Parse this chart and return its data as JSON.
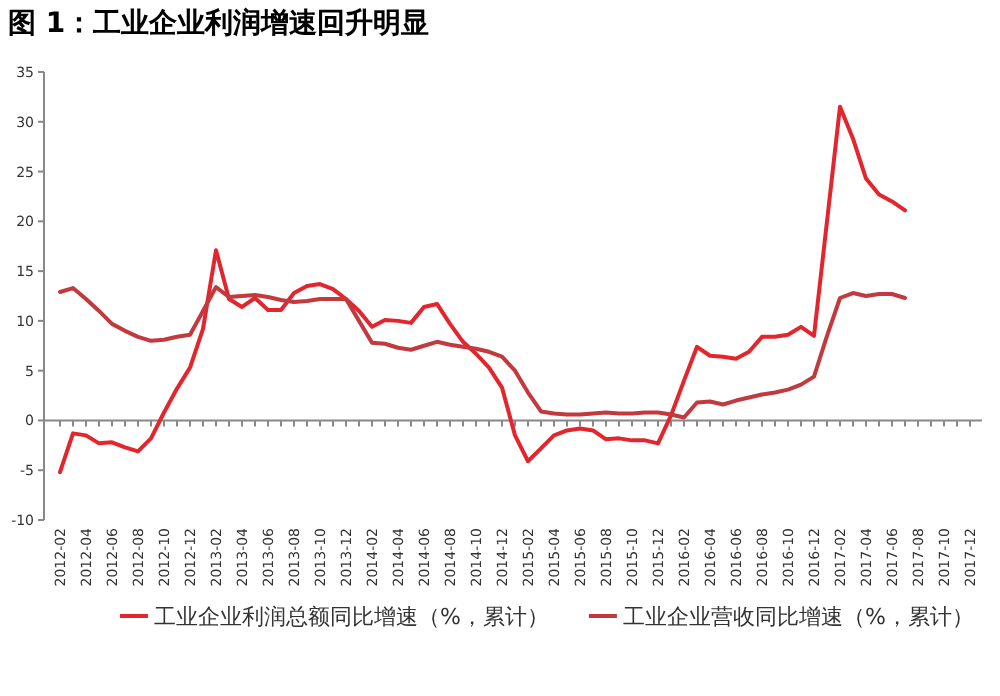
{
  "chart_data": {
    "type": "line",
    "title": "图 1：工业企业利润增速回升明显",
    "categories": [
      "2012-02",
      null,
      "2012-04",
      null,
      "2012-06",
      null,
      "2012-08",
      null,
      "2012-10",
      null,
      "2012-12",
      null,
      "2013-02",
      null,
      "2013-04",
      null,
      "2013-06",
      null,
      "2013-08",
      null,
      "2013-10",
      null,
      "2013-12",
      null,
      "2014-02",
      null,
      "2014-04",
      null,
      "2014-06",
      null,
      "2014-08",
      null,
      "2014-10",
      null,
      "2014-12",
      null,
      "2015-02",
      null,
      "2015-04",
      null,
      "2015-06",
      null,
      "2015-08",
      null,
      "2015-10",
      null,
      "2015-12",
      null,
      "2016-02",
      null,
      "2016-04",
      null,
      "2016-06",
      null,
      "2016-08",
      null,
      "2016-10",
      null,
      "2016-12",
      null,
      "2017-02",
      null,
      "2017-04",
      null,
      "2017-06",
      null,
      "2017-08",
      null,
      "2017-10",
      null,
      "2017-12"
    ],
    "series": [
      {
        "name": "工业企业利润总额同比增速（%，累计）",
        "color": "#e3262d",
        "values": [
          -5.2,
          -1.3,
          -1.5,
          -2.3,
          -2.2,
          -2.7,
          -3.1,
          -1.8,
          0.8,
          3.2,
          5.3,
          9.2,
          17.1,
          12.2,
          11.4,
          12.3,
          11.1,
          11.1,
          12.8,
          13.5,
          13.7,
          13.2,
          12.2,
          11.0,
          9.4,
          10.1,
          10.0,
          9.8,
          11.4,
          11.7,
          9.7,
          7.9,
          6.7,
          5.3,
          3.3,
          -1.5,
          -4.1,
          -2.8,
          -1.5,
          -1.0,
          -0.8,
          -1.0,
          -1.9,
          -1.8,
          -2.0,
          -2.0,
          -2.3,
          0.5,
          4.0,
          7.4,
          6.5,
          6.4,
          6.2,
          6.9,
          8.4,
          8.4,
          8.6,
          9.4,
          8.5,
          20.0,
          31.5,
          28.3,
          24.3,
          22.7,
          22.0,
          21.1,
          null,
          null,
          null,
          null,
          null
        ]
      },
      {
        "name": "工业企业营收同比增速（%，累计）",
        "color": "#c23a3e",
        "values": [
          12.9,
          13.3,
          12.2,
          11.0,
          9.7,
          9.0,
          8.4,
          8.0,
          8.1,
          8.4,
          8.6,
          11.0,
          13.4,
          12.4,
          12.5,
          12.6,
          12.4,
          12.1,
          11.9,
          12.0,
          12.2,
          12.2,
          12.2,
          10.0,
          7.8,
          7.7,
          7.3,
          7.1,
          7.5,
          7.9,
          7.6,
          7.4,
          7.2,
          6.9,
          6.4,
          5.0,
          2.8,
          0.9,
          0.7,
          0.6,
          0.6,
          0.7,
          0.8,
          0.7,
          0.7,
          0.8,
          0.8,
          0.6,
          0.3,
          1.8,
          1.9,
          1.6,
          2.0,
          2.3,
          2.6,
          2.8,
          3.1,
          3.6,
          4.4,
          8.5,
          12.3,
          12.8,
          12.5,
          12.7,
          12.7,
          12.3,
          null,
          null,
          null,
          null,
          null
        ]
      }
    ],
    "ylim": [
      -10,
      35
    ],
    "yticks": [
      -10,
      -5,
      0,
      5,
      10,
      15,
      20,
      25,
      30,
      35
    ],
    "legend": "bottom",
    "marker": "none",
    "line_style": "solid"
  }
}
